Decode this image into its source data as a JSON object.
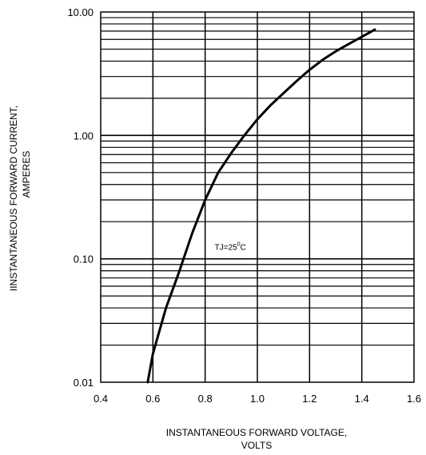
{
  "chart_data": {
    "type": "line",
    "xlabel_lines": [
      "INSTANTANEOUS FORWARD VOLTAGE,",
      "VOLTS"
    ],
    "ylabel_lines": [
      "IINSTANTANEOUS FORWARD CURRENT,",
      "AMPERES"
    ],
    "x_scale": "linear",
    "y_scale": "log",
    "xlim": [
      0.4,
      1.6
    ],
    "ylim": [
      0.01,
      10.0
    ],
    "x_ticks": [
      0.4,
      0.6,
      0.8,
      1.0,
      1.2,
      1.4,
      1.6
    ],
    "x_tick_labels": [
      "0.4",
      "0.6",
      "0.8",
      "1.0",
      "1.2",
      "1.4",
      "1.6"
    ],
    "y_ticks": [
      0.01,
      0.1,
      1.0,
      10.0
    ],
    "y_tick_labels": [
      "0.01",
      "0.10",
      "1.00",
      "10.00"
    ],
    "grid": true,
    "annotation": {
      "prefix": "TJ=25",
      "superscript": "0",
      "suffix": "C",
      "x": 0.8,
      "y": 0.1
    },
    "series": [
      {
        "x": [
          0.58,
          0.6,
          0.65,
          0.7,
          0.75,
          0.8,
          0.85,
          0.9,
          0.95,
          1.0,
          1.05,
          1.1,
          1.15,
          1.2,
          1.25,
          1.3,
          1.35,
          1.4,
          1.45
        ],
        "y": [
          0.01,
          0.017,
          0.04,
          0.078,
          0.16,
          0.3,
          0.5,
          0.72,
          1.0,
          1.35,
          1.75,
          2.2,
          2.75,
          3.4,
          4.1,
          4.8,
          5.5,
          6.3,
          7.2
        ]
      }
    ]
  }
}
